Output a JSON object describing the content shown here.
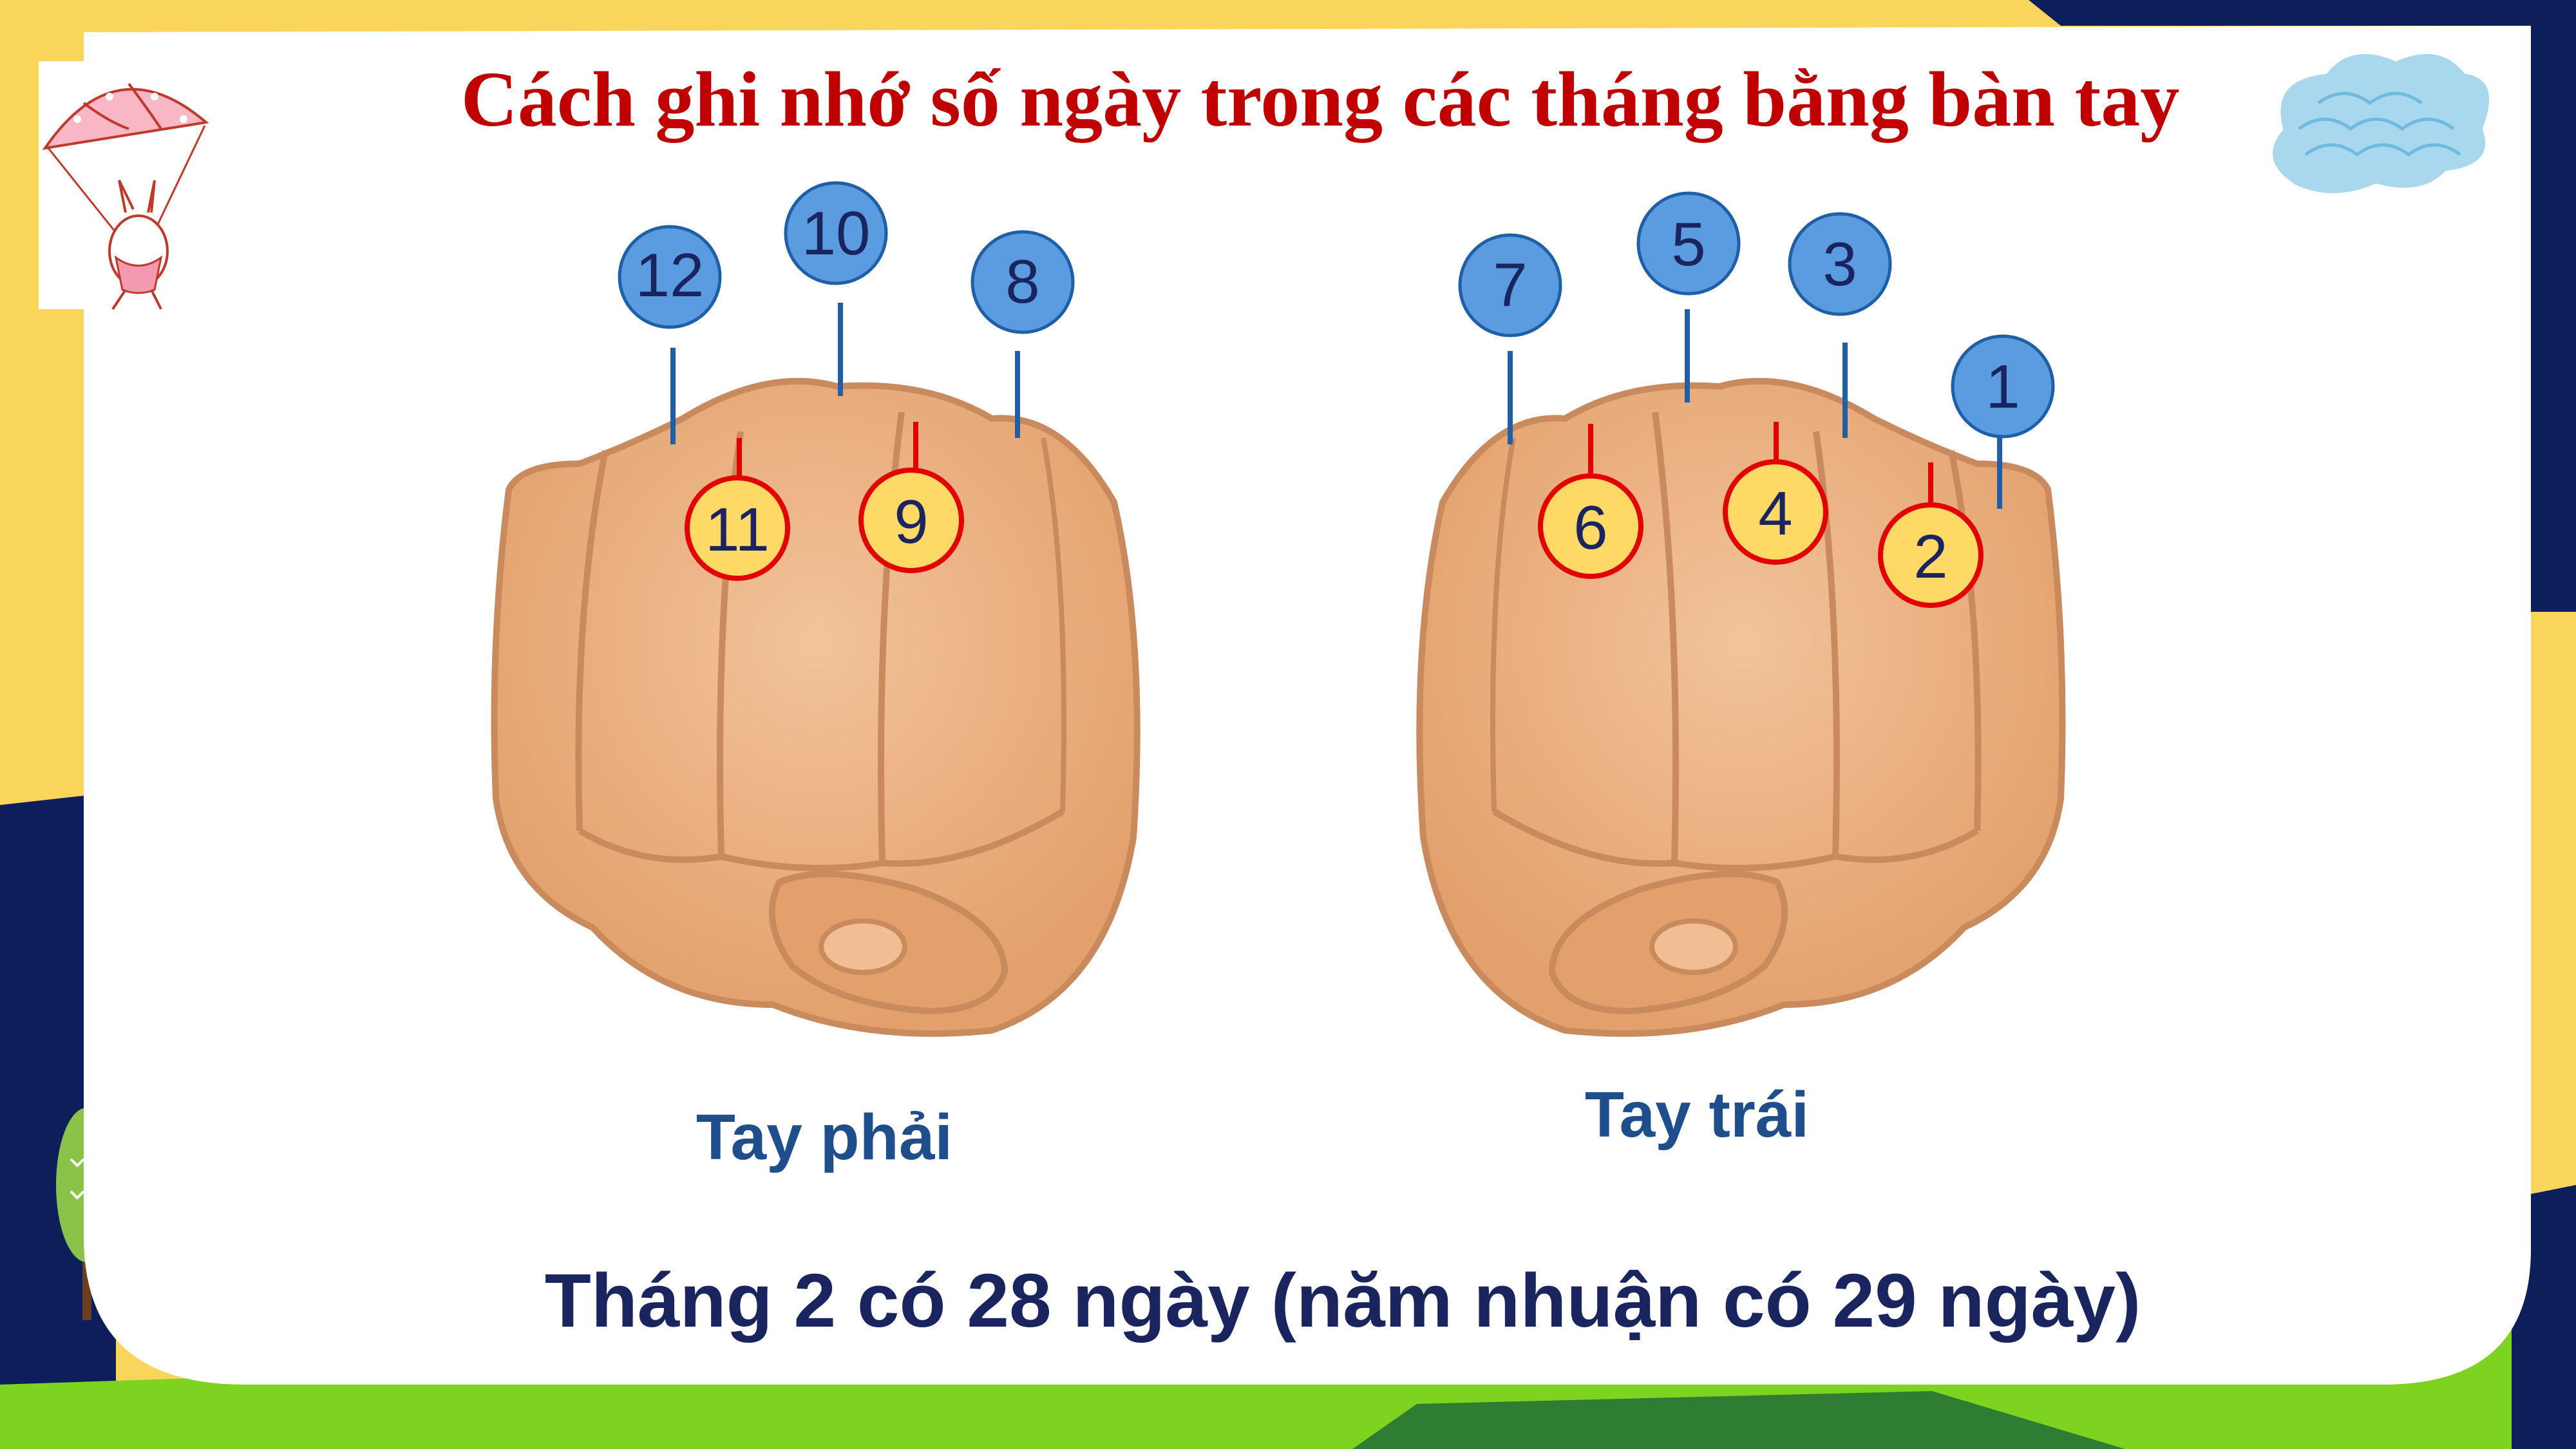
{
  "title": "Cách ghi nhớ số ngày trong các tháng bằng bàn tay",
  "right_hand": {
    "label": "Tay phải",
    "knuckle_months": [
      "12",
      "10",
      "8"
    ],
    "gap_months": [
      "11",
      "9"
    ]
  },
  "left_hand": {
    "label": "Tay trái",
    "knuckle_months": [
      "7",
      "5",
      "3",
      "1"
    ],
    "gap_months": [
      "6",
      "4",
      "2"
    ]
  },
  "footer_note": "Tháng 2 có 28 ngày (năm nhuận có 29 ngày)",
  "colors": {
    "title_red": "#C00000",
    "text_navy": "#1A2560",
    "label_blue": "#1F4E8C",
    "knuckle_fill": "#5B9BE0",
    "gap_fill": "#FFD966",
    "gap_stroke": "#E30000",
    "skin": "#E8A876",
    "skin_line": "#C98A5E",
    "bg_yellow": "#FAD55C",
    "bg_navy": "#0E1E5B",
    "grass": "#7ED321"
  },
  "icons": [
    "parachute-bunny-icon",
    "cloud-icon",
    "tree-icon"
  ]
}
